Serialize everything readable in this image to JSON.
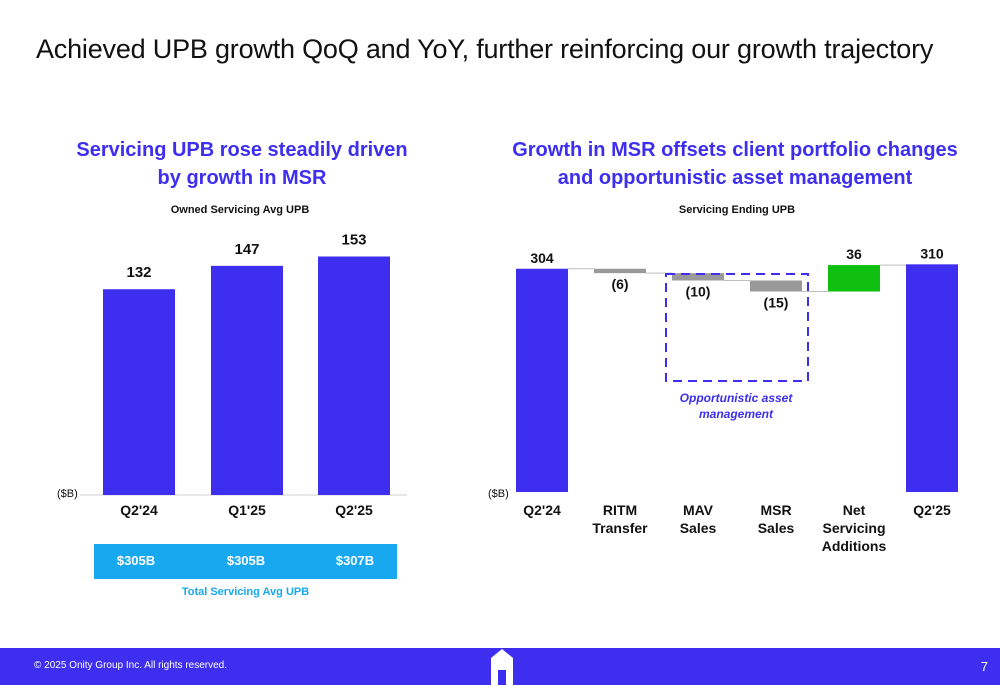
{
  "slide": {
    "title": "Achieved UPB growth QoQ and YoY, further reinforcing our growth trajectory",
    "page_number": "7",
    "copyright": "© 2025 Onity Group Inc. All rights reserved."
  },
  "left_panel": {
    "title_line1": "Servicing UPB rose steadily driven",
    "title_line2": "by growth in MSR",
    "subtitle": "Owned Servicing Avg UPB",
    "unit_label": "($B)",
    "total_label": "Total Servicing Avg UPB",
    "totals": [
      "$305B",
      "$305B",
      "$307B"
    ]
  },
  "right_panel": {
    "title_line1": "Growth in MSR offsets client portfolio changes",
    "title_line2": "and opportunistic asset management",
    "subtitle": "Servicing Ending UPB",
    "unit_label": "($B)",
    "annotation": "Opportunistic asset management"
  },
  "colors": {
    "brand_blue": "#3d2ef0",
    "decrease_gray": "#999999",
    "increase_green": "#10c010",
    "total_bar_blue": "#17a8ef"
  },
  "chart_data": [
    {
      "type": "bar",
      "title": "Owned Servicing Avg UPB",
      "categories": [
        "Q2'24",
        "Q1'25",
        "Q2'25"
      ],
      "values": [
        132,
        147,
        153
      ],
      "labels": [
        "132",
        "147",
        "153"
      ],
      "ylabel": "($B)",
      "ylim": [
        0,
        170
      ]
    },
    {
      "type": "bar",
      "subtype": "waterfall",
      "title": "Servicing Ending UPB",
      "categories": [
        [
          "Q2'24"
        ],
        [
          "RITM",
          "Transfer"
        ],
        [
          "MAV",
          "Sales"
        ],
        [
          "MSR",
          "Sales"
        ],
        [
          "Net",
          "Servicing",
          "Additions"
        ],
        [
          "Q2'25"
        ]
      ],
      "values": [
        304,
        -6,
        -10,
        -15,
        36,
        310
      ],
      "labels": [
        "304",
        "(6)",
        "(10)",
        "(15)",
        "36",
        "310"
      ],
      "kinds": [
        "total",
        "decrease",
        "decrease",
        "decrease",
        "increase",
        "total"
      ],
      "ylabel": "($B)",
      "ylim": [
        0,
        320
      ]
    }
  ]
}
